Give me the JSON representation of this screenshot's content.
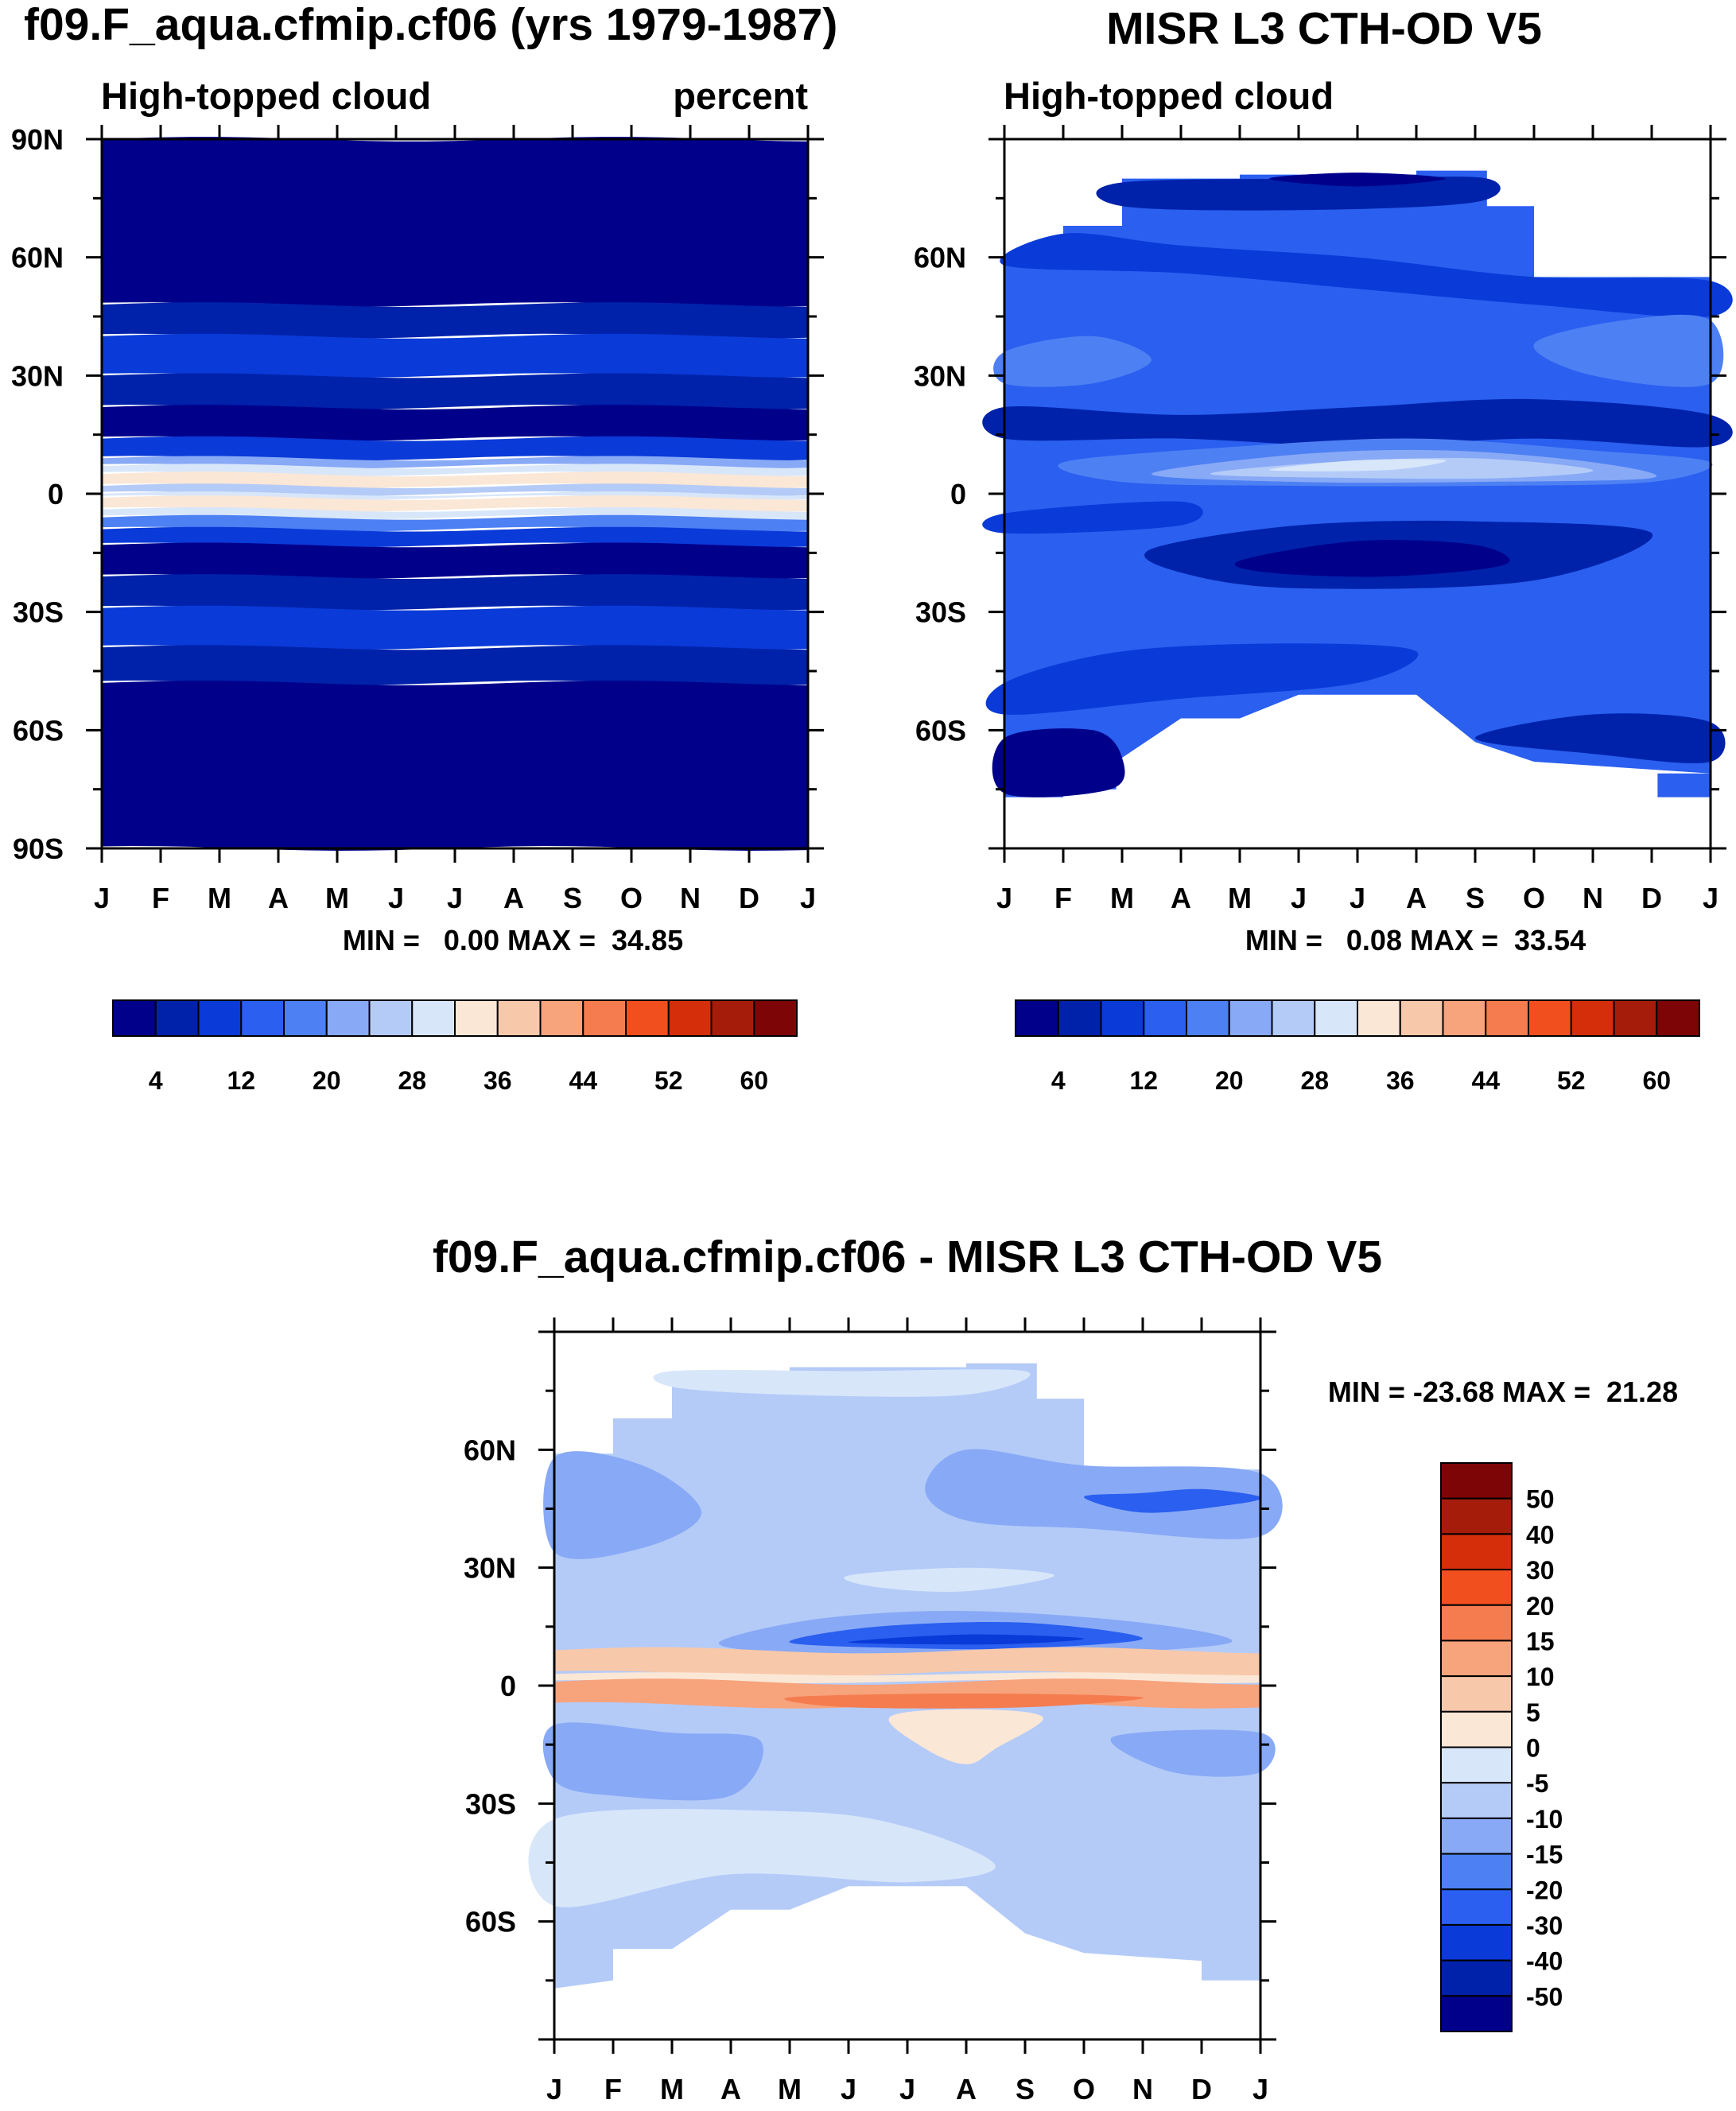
{
  "chart_data": [
    {
      "type": "heatmap",
      "title": "f09.F_aqua.cfmip.cf06 (yrs 1979-1987)",
      "left_label": "High-topped cloud",
      "right_label": "percent",
      "x_ticks": [
        "J",
        "F",
        "M",
        "A",
        "M",
        "J",
        "J",
        "A",
        "S",
        "O",
        "N",
        "D",
        "J"
      ],
      "y_ticks": [
        "90N",
        "60N",
        "30N",
        "0",
        "30S",
        "60S",
        "90S"
      ],
      "ylim": [
        -90,
        90
      ],
      "min_max": "MIN =   0.00 MAX =  34.85",
      "bands": [
        {
          "lat": [
            48,
            90
          ],
          "value": 2
        },
        {
          "lat": [
            40,
            48
          ],
          "value": 6
        },
        {
          "lat": [
            30,
            40
          ],
          "value": 10
        },
        {
          "lat": [
            22,
            30
          ],
          "value": 6
        },
        {
          "lat": [
            14,
            22
          ],
          "value": 2
        },
        {
          "lat": [
            9,
            14
          ],
          "value": 10
        },
        {
          "lat": [
            7,
            9
          ],
          "value": 22
        },
        {
          "lat": [
            5,
            7
          ],
          "value": 30
        },
        {
          "lat": [
            2,
            5
          ],
          "value": 34
        },
        {
          "lat": [
            0,
            2
          ],
          "value": 26
        },
        {
          "lat": [
            -1,
            0
          ],
          "value": 30
        },
        {
          "lat": [
            -4,
            -1
          ],
          "value": 34
        },
        {
          "lat": [
            -6,
            -4
          ],
          "value": 28
        },
        {
          "lat": [
            -9,
            -6
          ],
          "value": 18
        },
        {
          "lat": [
            -13,
            -9
          ],
          "value": 10
        },
        {
          "lat": [
            -21,
            -13
          ],
          "value": 2
        },
        {
          "lat": [
            -29,
            -21
          ],
          "value": 6
        },
        {
          "lat": [
            -39,
            -29
          ],
          "value": 10
        },
        {
          "lat": [
            -48,
            -39
          ],
          "value": 6
        },
        {
          "lat": [
            -90,
            -48
          ],
          "value": 2
        }
      ],
      "colorbar": {
        "labels": [
          "4",
          "12",
          "20",
          "28",
          "36",
          "44",
          "52",
          "60"
        ],
        "colors": [
          "#00008b",
          "#0022aa",
          "#0a3ad8",
          "#2a5ff0",
          "#4d80f3",
          "#88a9f5",
          "#b4cbf8",
          "#d8e6fa",
          "#fbe7d6",
          "#f8c8aa",
          "#f7a37c",
          "#f57c4f",
          "#f24f1e",
          "#d42e0a",
          "#a51d0a",
          "#7e0505"
        ]
      }
    },
    {
      "type": "heatmap",
      "title": "MISR L3 CTH-OD V5",
      "left_label": "High-topped cloud",
      "x_ticks": [
        "J",
        "F",
        "M",
        "A",
        "M",
        "J",
        "J",
        "A",
        "S",
        "O",
        "N",
        "D",
        "J"
      ],
      "y_ticks": [
        "60N",
        "30N",
        "0",
        "30S",
        "60S"
      ],
      "ylim": [
        -90,
        90
      ],
      "min_max": "MIN =   0.08 MAX =  33.54",
      "colorbar": {
        "labels": [
          "4",
          "12",
          "20",
          "28",
          "36",
          "44",
          "52",
          "60"
        ],
        "colors": [
          "#00008b",
          "#0022aa",
          "#0a3ad8",
          "#2a5ff0",
          "#4d80f3",
          "#88a9f5",
          "#b4cbf8",
          "#d8e6fa",
          "#fbe7d6",
          "#f8c8aa",
          "#f7a37c",
          "#f57c4f",
          "#f24f1e",
          "#d42e0a",
          "#a51d0a",
          "#7e0505"
        ]
      }
    },
    {
      "type": "heatmap",
      "title": "f09.F_aqua.cfmip.cf06 - MISR L3 CTH-OD V5",
      "x_ticks": [
        "J",
        "F",
        "M",
        "A",
        "M",
        "J",
        "J",
        "A",
        "S",
        "O",
        "N",
        "D",
        "J"
      ],
      "y_ticks": [
        "60N",
        "30N",
        "0",
        "30S",
        "60S"
      ],
      "ylim": [
        -90,
        90
      ],
      "min_max": "MIN = -23.68 MAX =  21.28",
      "colorbar": {
        "labels": [
          "50",
          "40",
          "30",
          "20",
          "15",
          "10",
          "5",
          "0",
          "-5",
          "-10",
          "-15",
          "-20",
          "-30",
          "-40",
          "-50"
        ],
        "colors": [
          "#7e0505",
          "#a51d0a",
          "#d42e0a",
          "#f24f1e",
          "#f57c4f",
          "#f7a37c",
          "#f8c8aa",
          "#fbe7d6",
          "#d8e6fa",
          "#b4cbf8",
          "#88a9f5",
          "#4d80f3",
          "#2a5ff0",
          "#0a3ad8",
          "#0022aa",
          "#00008b"
        ]
      }
    }
  ]
}
